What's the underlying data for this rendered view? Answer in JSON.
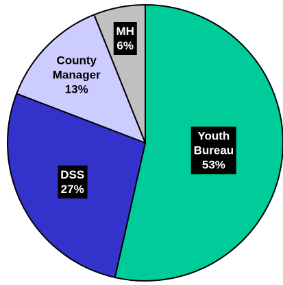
{
  "chart_data": {
    "type": "pie",
    "categories": [
      "Youth Bureau",
      "DSS",
      "County Manager",
      "MH"
    ],
    "values": [
      53,
      27,
      13,
      6
    ],
    "value_labels": [
      "53%",
      "27%",
      "13%",
      "6%"
    ],
    "colors": [
      "#00cc99",
      "#3333cc",
      "#ccccff",
      "#c0c0c0"
    ],
    "label_boxes": [
      true,
      true,
      false,
      true
    ]
  }
}
